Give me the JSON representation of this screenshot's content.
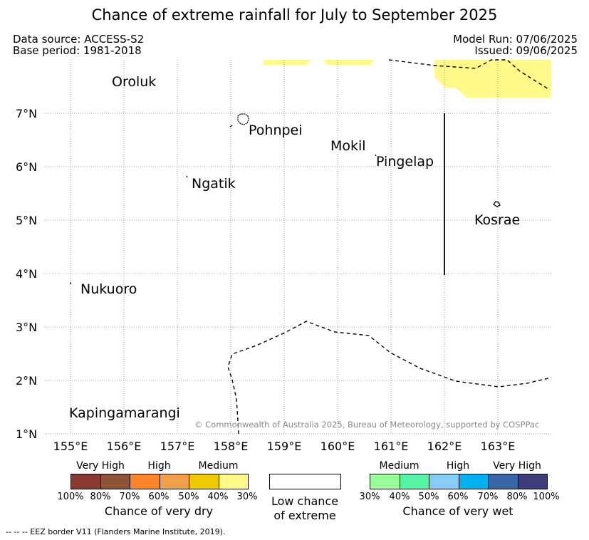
{
  "title": "Chance of extreme rainfall for July to September 2025",
  "data_source": "Data source: ACCESS-S2",
  "base_period": "Base period: 1981-2018",
  "model_run": "Model Run: 07/06/2025",
  "issued": "Issued: 09/06/2025",
  "latitude_ticks": [
    "7°N",
    "6°N",
    "5°N",
    "4°N",
    "3°N",
    "2°N",
    "1°N"
  ],
  "longitude_ticks": [
    "155°E",
    "156°E",
    "157°E",
    "158°E",
    "159°E",
    "160°E",
    "161°E",
    "162°E",
    "163°E"
  ],
  "places": {
    "oroluk": "Oroluk",
    "pohnpei": "Pohnpei",
    "mokil": "Mokil",
    "pingelap": "Pingelap",
    "ngatik": "Ngatik",
    "kosrae": "Kosrae",
    "nukuoro": "Nukuoro",
    "kapingamarangi": "Kapingamarangi"
  },
  "copyright": "© Commonwealth of Australia 2025, Bureau of Meteorology, supported by COSPPac",
  "legend": {
    "dry": {
      "category_labels": [
        "Very High",
        "High",
        "Medium"
      ],
      "ticks": [
        "100%",
        "80%",
        "70%",
        "60%",
        "50%",
        "40%",
        "30%"
      ],
      "colors": [
        "#8b3a32",
        "#8e5238",
        "#ff8329",
        "#f0a04b",
        "#f0c800",
        "#fff98a"
      ],
      "title": "Chance of very dry"
    },
    "neutral": {
      "line1": "Low chance",
      "line2": "of extreme",
      "color": "#ffffff"
    },
    "wet": {
      "category_labels": [
        "Medium",
        "High",
        "Very High"
      ],
      "ticks": [
        "30%",
        "40%",
        "50%",
        "60%",
        "70%",
        "80%",
        "100%"
      ],
      "colors": [
        "#99ff99",
        "#55f5a5",
        "#88ccf8",
        "#00b0f0",
        "#3a66a8",
        "#3d3d7c"
      ],
      "title": "Chance of very wet"
    }
  },
  "map_colors": {
    "medium_dry_fill": "#fff98a"
  },
  "footnote": "--  --  -- EEZ border V11 (Flanders Marine Institute, 2019)."
}
